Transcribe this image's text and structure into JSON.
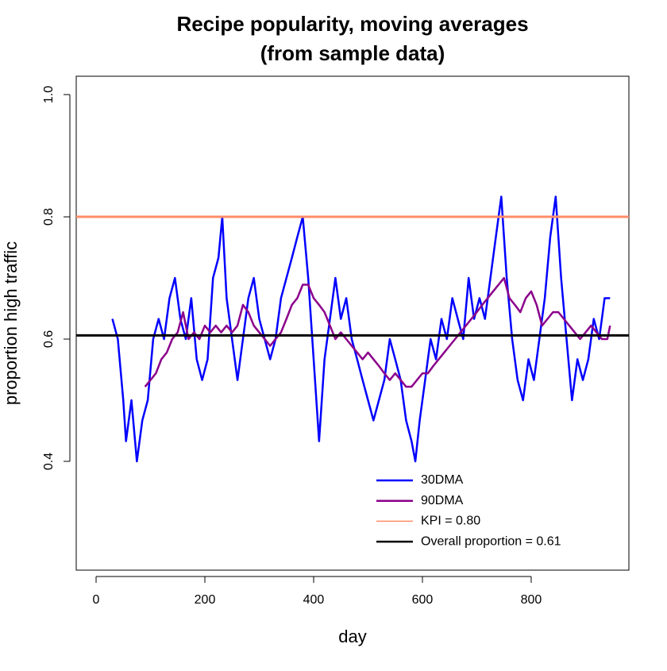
{
  "chart_data": {
    "type": "line",
    "title": "Recipe popularity, moving averages",
    "subtitle": "(from sample data)",
    "x_label": "day",
    "y_label": "proportion high traffic",
    "xlim": [
      -36.5,
      979.6
    ],
    "ylim": [
      0.222,
      1.03
    ],
    "xticks": [
      0,
      200,
      400,
      600,
      800
    ],
    "yticks": [
      0.4,
      0.6,
      0.8,
      {
        "value": 1,
        "label": "1.0"
      }
    ],
    "legend": "bottom-right",
    "series": [
      {
        "name": "30DMA",
        "color": "#0000ff",
        "x": [
          30,
          40,
          50,
          55,
          65,
          75,
          85,
          95,
          105,
          115,
          125,
          135,
          145,
          155,
          165,
          175,
          185,
          195,
          205,
          215,
          225,
          232,
          240,
          250,
          260,
          270,
          280,
          290,
          300,
          310,
          320,
          330,
          340,
          350,
          360,
          370,
          380,
          390,
          400,
          410,
          420,
          430,
          440,
          450,
          460,
          470,
          480,
          490,
          500,
          510,
          520,
          530,
          540,
          550,
          560,
          570,
          580,
          587,
          595,
          605,
          615,
          625,
          635,
          645,
          655,
          665,
          675,
          685,
          695,
          705,
          715,
          725,
          735,
          745,
          755,
          765,
          775,
          785,
          795,
          805,
          815,
          825,
          835,
          845,
          855,
          865,
          875,
          885,
          895,
          905,
          915,
          925,
          935,
          945
        ],
        "values": [
          0.633,
          0.6,
          0.5,
          0.433,
          0.5,
          0.4,
          0.467,
          0.5,
          0.6,
          0.633,
          0.6,
          0.667,
          0.7,
          0.633,
          0.6,
          0.667,
          0.567,
          0.533,
          0.567,
          0.7,
          0.733,
          0.8,
          0.667,
          0.6,
          0.533,
          0.6,
          0.667,
          0.7,
          0.633,
          0.6,
          0.567,
          0.6,
          0.667,
          0.7,
          0.733,
          0.767,
          0.8,
          0.7,
          0.567,
          0.433,
          0.567,
          0.633,
          0.7,
          0.633,
          0.667,
          0.6,
          0.567,
          0.533,
          0.5,
          0.467,
          0.5,
          0.533,
          0.6,
          0.567,
          0.533,
          0.467,
          0.433,
          0.4,
          0.467,
          0.533,
          0.6,
          0.567,
          0.633,
          0.6,
          0.667,
          0.633,
          0.6,
          0.7,
          0.633,
          0.667,
          0.633,
          0.7,
          0.767,
          0.833,
          0.7,
          0.6,
          0.533,
          0.5,
          0.567,
          0.533,
          0.6,
          0.667,
          0.767,
          0.833,
          0.7,
          0.6,
          0.5,
          0.567,
          0.533,
          0.567,
          0.633,
          0.6,
          0.667,
          0.667
        ]
      },
      {
        "name": "90DMA",
        "color": "#8b008b",
        "x": [
          90,
          100,
          110,
          120,
          130,
          140,
          150,
          160,
          170,
          180,
          190,
          200,
          210,
          220,
          230,
          240,
          250,
          260,
          270,
          280,
          290,
          300,
          310,
          320,
          330,
          340,
          350,
          360,
          370,
          380,
          390,
          400,
          410,
          420,
          430,
          440,
          450,
          460,
          470,
          480,
          490,
          500,
          510,
          520,
          530,
          540,
          550,
          560,
          570,
          580,
          590,
          600,
          610,
          620,
          630,
          640,
          650,
          660,
          670,
          680,
          690,
          700,
          710,
          720,
          730,
          740,
          750,
          760,
          770,
          780,
          790,
          800,
          810,
          820,
          830,
          840,
          850,
          860,
          870,
          880,
          890,
          900,
          910,
          920,
          930,
          940,
          945
        ],
        "values": [
          0.522,
          0.533,
          0.544,
          0.567,
          0.578,
          0.6,
          0.611,
          0.644,
          0.6,
          0.611,
          0.6,
          0.622,
          0.611,
          0.622,
          0.611,
          0.622,
          0.611,
          0.622,
          0.656,
          0.644,
          0.622,
          0.611,
          0.6,
          0.589,
          0.6,
          0.611,
          0.633,
          0.656,
          0.667,
          0.689,
          0.689,
          0.667,
          0.656,
          0.644,
          0.622,
          0.6,
          0.611,
          0.6,
          0.589,
          0.578,
          0.567,
          0.578,
          0.567,
          0.556,
          0.544,
          0.533,
          0.544,
          0.533,
          0.522,
          0.522,
          0.533,
          0.544,
          0.544,
          0.556,
          0.567,
          0.578,
          0.589,
          0.6,
          0.611,
          0.622,
          0.633,
          0.644,
          0.656,
          0.667,
          0.678,
          0.689,
          0.7,
          0.667,
          0.656,
          0.644,
          0.667,
          0.678,
          0.656,
          0.622,
          0.633,
          0.644,
          0.644,
          0.633,
          0.622,
          0.611,
          0.6,
          0.611,
          0.622,
          0.611,
          0.6,
          0.6,
          0.622
        ]
      }
    ],
    "hlines": [
      {
        "name": "KPI = 0.80",
        "value": 0.8,
        "color": "#ff8c69"
      },
      {
        "name": "Overall proportion = 0.61",
        "value": 0.606,
        "color": "#000000"
      }
    ]
  }
}
